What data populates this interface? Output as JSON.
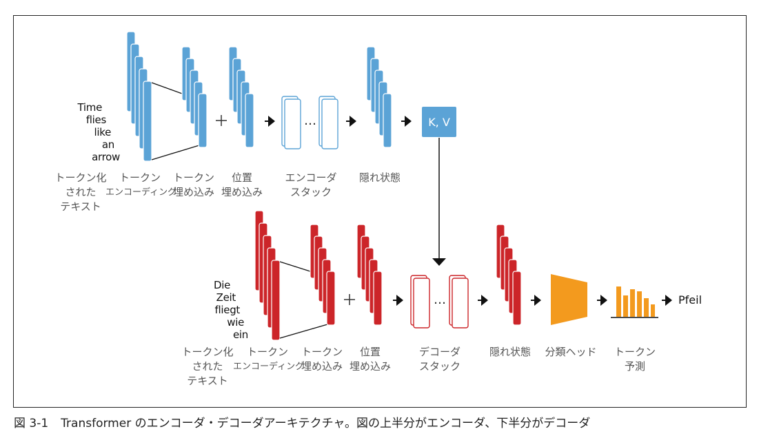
{
  "encoder": {
    "input_words": [
      "Time",
      "flies",
      "like",
      "an",
      "arrow"
    ],
    "labels": {
      "tokenized_text": [
        "トークン化",
        "された",
        "テキスト"
      ],
      "token_encoding": [
        "トークン",
        "エンコーディング"
      ],
      "token_embedding": [
        "トークン",
        "埋め込み"
      ],
      "position_embedding": [
        "位置",
        "埋め込み"
      ],
      "encoder_stack": [
        "エンコーダ",
        "スタック"
      ],
      "hidden_state": [
        "隠れ状態"
      ]
    },
    "kv_label": "K, V",
    "plus": "+",
    "dots": "…"
  },
  "decoder": {
    "input_words": [
      "Die",
      "Zeit",
      "fliegt",
      "wie",
      "ein"
    ],
    "labels": {
      "tokenized_text": [
        "トークン化",
        "された",
        "テキスト"
      ],
      "token_encoding": [
        "トークン",
        "エンコーディング"
      ],
      "token_embedding": [
        "トークン",
        "埋め込み"
      ],
      "position_embedding": [
        "位置",
        "埋め込み"
      ],
      "decoder_stack": [
        "デコーダ",
        "スタック"
      ],
      "hidden_state": [
        "隠れ状態"
      ],
      "classification_head": [
        "分類ヘッド"
      ],
      "token_prediction": [
        "トークン",
        "予測"
      ]
    },
    "output_word": "Pfeil",
    "plus": "+",
    "dots": "…"
  },
  "caption": {
    "number": "図 3-1",
    "text": "Transformer のエンコーダ・デコーダアーキテクチャ。図の上半分がエンコーダ、下半分がデコーダ"
  },
  "colors": {
    "encoder_blue": "#5ba3d6",
    "decoder_red": "#cc2529",
    "head_orange": "#f39a1e",
    "arrow": "#111111"
  },
  "icons": [
    "arrow-right-icon",
    "arrow-down-icon",
    "plus-icon",
    "ellipsis-icon"
  ]
}
